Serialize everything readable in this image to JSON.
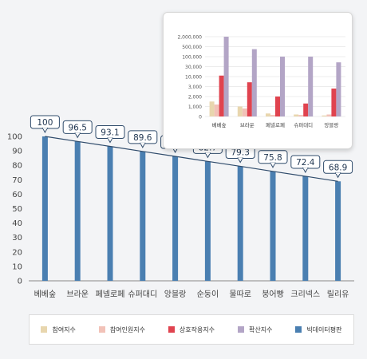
{
  "chart_data": [
    {
      "type": "bar",
      "categories": [
        "베베숲",
        "브라운",
        "페넬로페",
        "슈퍼대디",
        "앙블랑",
        "순둥이",
        "물따로",
        "붕어빵",
        "크리넥스",
        "릴리유"
      ],
      "series": [
        {
          "name": "빅데이터평판",
          "values": [
            100,
            96.5,
            93.1,
            89.6,
            86.2,
            82.7,
            79.3,
            75.8,
            72.4,
            68.9
          ]
        }
      ],
      "trend_line": true,
      "ylim": [
        0,
        100
      ],
      "y_ticks": [
        0,
        10,
        20,
        30,
        40,
        50,
        60,
        70,
        80,
        90,
        100
      ],
      "grid": false,
      "data_labels": [
        "100",
        "96.5",
        "93.1",
        "89.6",
        "86.2",
        "82.7",
        "79.3",
        "75.8",
        "72.4",
        "68.9"
      ]
    },
    {
      "type": "bar",
      "categories": [
        "베베숲",
        "브라운",
        "페넬로페",
        "슈퍼대디",
        "앙블랑"
      ],
      "series": [
        {
          "name": "참여지수",
          "values": [
            1500,
            1000,
            300,
            200,
            100
          ]
        },
        {
          "name": "참여인원지수",
          "values": [
            1200,
            800,
            150,
            150,
            200
          ]
        },
        {
          "name": "상호작용지수",
          "values": [
            12000,
            6000,
            2000,
            1300,
            2800
          ]
        },
        {
          "name": "확산지수",
          "values": [
            2000000,
            400000,
            100000,
            100000,
            60000
          ]
        }
      ],
      "y_ticks": [
        "0",
        "1,000",
        "2,000",
        "3,000",
        "10,000",
        "30,000",
        "100,000",
        "500,000",
        "2,000,000"
      ],
      "scale": "custom-piecewise",
      "grid": true
    }
  ],
  "legend": [
    {
      "label": "참여지수",
      "color": "#e8d6ae"
    },
    {
      "label": "참여인원지수",
      "color": "#f2c2b8"
    },
    {
      "label": "상호작용지수",
      "color": "#e0434f"
    },
    {
      "label": "확산지수",
      "color": "#b3a5c6"
    },
    {
      "label": "빅데이터평판",
      "color": "#4a7fb1"
    }
  ],
  "colors": {
    "main_bar": "#4a7fb1",
    "trend_line": "#2f4b6b"
  }
}
